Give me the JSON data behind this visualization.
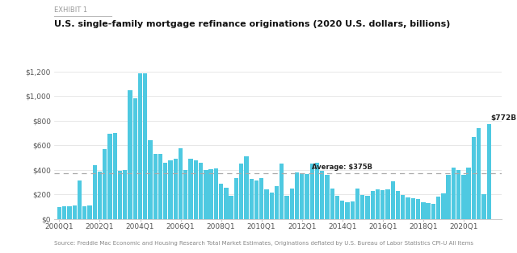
{
  "title": "U.S. single-family mortgage refinance originations (2020 U.S. dollars, billions)",
  "exhibit_label": "EXHIBIT 1",
  "source_text": "Source: Freddie Mac Economic and Housing Research Total Market Estimates, Originations deflated by U.S. Bureau of Labor Statistics CPI-U All Items",
  "average": 375,
  "average_label": "Average: $375B",
  "last_bar_label": "$772B",
  "bar_color": "#4ec9e1",
  "avg_line_color": "#aaaaaa",
  "background_color": "#ffffff",
  "ylim": [
    0,
    1300
  ],
  "yticks": [
    0,
    200,
    400,
    600,
    800,
    1000,
    1200
  ],
  "ytick_labels": [
    "$0",
    "$200",
    "$400",
    "$600",
    "$800",
    "$1,000",
    "$1,200"
  ],
  "values": [
    95,
    100,
    105,
    110,
    310,
    105,
    110,
    440,
    385,
    570,
    695,
    700,
    390,
    400,
    1050,
    980,
    1185,
    1190,
    640,
    530,
    530,
    460,
    475,
    490,
    575,
    400,
    490,
    480,
    455,
    400,
    405,
    410,
    285,
    255,
    185,
    330,
    450,
    510,
    325,
    310,
    330,
    240,
    215,
    265,
    450,
    185,
    250,
    380,
    370,
    365,
    450,
    460,
    390,
    360,
    250,
    185,
    150,
    135,
    145,
    245,
    195,
    185,
    225,
    240,
    235,
    240,
    305,
    230,
    195,
    175,
    170,
    160,
    135,
    130,
    125,
    180,
    205,
    360,
    415,
    400,
    360,
    420,
    665,
    740,
    200,
    772
  ],
  "xtick_positions": [
    0,
    8,
    16,
    24,
    32,
    40,
    48,
    56,
    64,
    72,
    80
  ],
  "xtick_labels": [
    "2000Q1",
    "2002Q1",
    "2004Q1",
    "2006Q1",
    "2008Q1",
    "2010Q1",
    "2012Q1",
    "2014Q1",
    "2016Q1",
    "2018Q1",
    "2020Q1"
  ]
}
